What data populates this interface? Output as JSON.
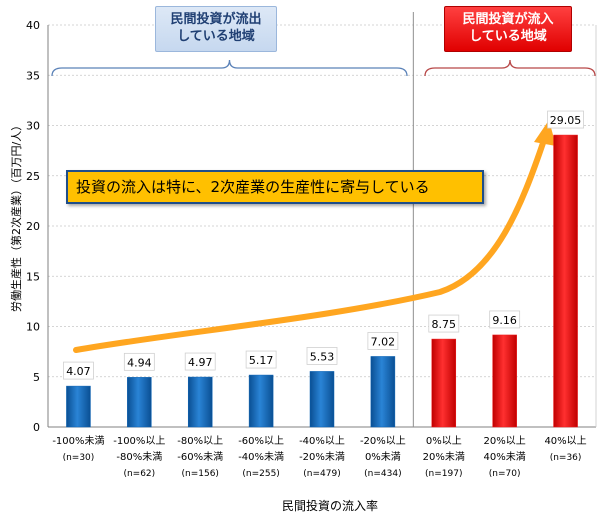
{
  "chart_data": {
    "type": "bar",
    "xlabel": "民間投資の流入率",
    "ylabel": "労働生産性（第2次産業）（百万円/人）",
    "ylim": [
      0,
      40
    ],
    "yticks": [
      "0",
      "5",
      "10",
      "15",
      "20",
      "25",
      "30",
      "35",
      "40"
    ],
    "grid": true,
    "categories": [
      {
        "line1": "-100%未満",
        "line2": "(n=30)"
      },
      {
        "line1": "-100%以上",
        "line2": "-80%未満",
        "line3": "(n=62)"
      },
      {
        "line1": "-80%以上",
        "line2": "-60%未満",
        "line3": "(n=156)"
      },
      {
        "line1": "-60%以上",
        "line2": "-40%未満",
        "line3": "(n=255)"
      },
      {
        "line1": "-40%以上",
        "line2": "-20%未満",
        "line3": "(n=479)"
      },
      {
        "line1": "-20%以上",
        "line2": "0%未満",
        "line3": "(n=434)"
      },
      {
        "line1": "0%以上",
        "line2": "20%未満",
        "line3": "(n=197)"
      },
      {
        "line1": "20%以上",
        "line2": "40%未満",
        "line3": "(n=70)"
      },
      {
        "line1": "40%以上",
        "line2": "(n=36)"
      }
    ],
    "values": [
      4.07,
      4.94,
      4.97,
      5.17,
      5.53,
      7.02,
      8.75,
      9.16,
      29.05
    ],
    "value_labels": [
      "4.07",
      "4.94",
      "4.97",
      "5.17",
      "5.53",
      "7.02",
      "8.75",
      "9.16",
      "29.05"
    ],
    "bar_colors": [
      "#0b63b5",
      "#0b63b5",
      "#0b63b5",
      "#0b63b5",
      "#0b63b5",
      "#0b63b5",
      "#ee1c1c",
      "#ee1c1c",
      "#ee1c1c"
    ],
    "divider_after_category": 6,
    "trend_color": "#ffa620",
    "annotations": {
      "outflow_label": [
        "民間投資が流出",
        "している地域"
      ],
      "inflow_label": [
        "民間投資が流入",
        "している地域"
      ],
      "banner": "投資の流入は特に、2次産業の生産性に寄与している"
    },
    "colors": {
      "outflow_brace": "#5b82b8",
      "inflow_brace": "#b84848"
    }
  }
}
